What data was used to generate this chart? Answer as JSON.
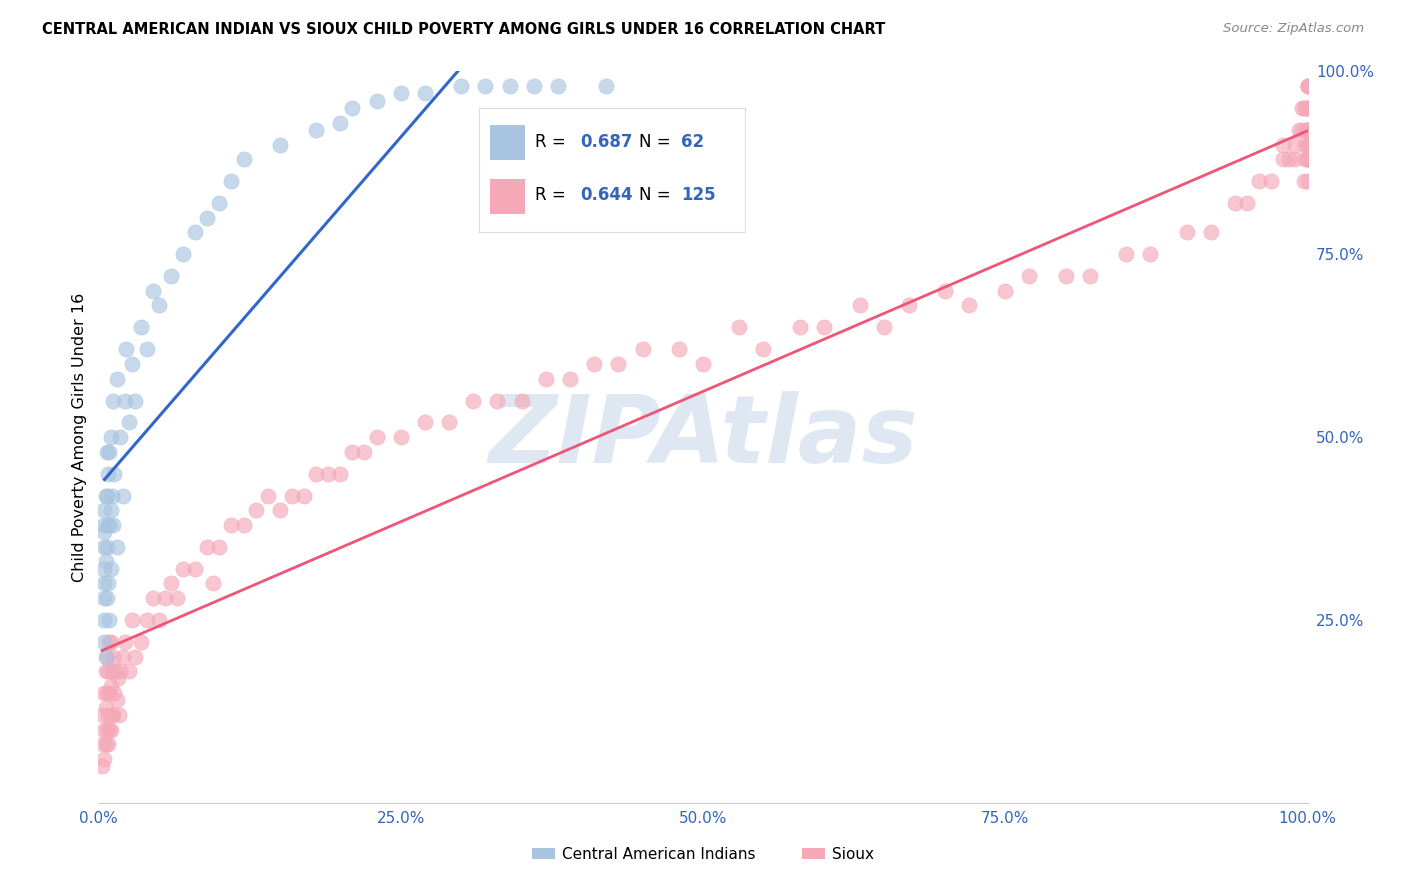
{
  "title": "CENTRAL AMERICAN INDIAN VS SIOUX CHILD POVERTY AMONG GIRLS UNDER 16 CORRELATION CHART",
  "source": "Source: ZipAtlas.com",
  "ylabel": "Child Poverty Among Girls Under 16",
  "blue_label": "Central American Indians",
  "pink_label": "Sioux",
  "blue_R": 0.687,
  "blue_N": 62,
  "pink_R": 0.644,
  "pink_N": 125,
  "blue_color": "#A8C4E0",
  "pink_color": "#F4A8B8",
  "blue_line_color": "#3366CC",
  "pink_line_color": "#EE5577",
  "watermark_color": "#C5D5EA",
  "background": "#FFFFFF",
  "blue_x": [
    0.005,
    0.005,
    0.005,
    0.005,
    0.005,
    0.005,
    0.005,
    0.005,
    0.005,
    0.006,
    0.006,
    0.006,
    0.007,
    0.007,
    0.007,
    0.007,
    0.008,
    0.008,
    0.008,
    0.009,
    0.009,
    0.009,
    0.01,
    0.01,
    0.01,
    0.011,
    0.012,
    0.012,
    0.013,
    0.015,
    0.015,
    0.018,
    0.02,
    0.022,
    0.023,
    0.025,
    0.028,
    0.03,
    0.035,
    0.04,
    0.045,
    0.05,
    0.06,
    0.07,
    0.08,
    0.09,
    0.1,
    0.11,
    0.12,
    0.15,
    0.18,
    0.2,
    0.21,
    0.23,
    0.25,
    0.27,
    0.3,
    0.32,
    0.34,
    0.36,
    0.38,
    0.42
  ],
  "blue_y": [
    0.22,
    0.25,
    0.28,
    0.3,
    0.32,
    0.35,
    0.37,
    0.38,
    0.4,
    0.2,
    0.33,
    0.42,
    0.28,
    0.35,
    0.42,
    0.48,
    0.3,
    0.38,
    0.45,
    0.25,
    0.38,
    0.48,
    0.32,
    0.4,
    0.5,
    0.42,
    0.38,
    0.55,
    0.45,
    0.35,
    0.58,
    0.5,
    0.42,
    0.55,
    0.62,
    0.52,
    0.6,
    0.55,
    0.65,
    0.62,
    0.7,
    0.68,
    0.72,
    0.75,
    0.78,
    0.8,
    0.82,
    0.85,
    0.88,
    0.9,
    0.92,
    0.93,
    0.95,
    0.96,
    0.97,
    0.97,
    0.98,
    0.98,
    0.98,
    0.98,
    0.98,
    0.98
  ],
  "pink_x": [
    0.003,
    0.004,
    0.004,
    0.005,
    0.005,
    0.005,
    0.006,
    0.006,
    0.006,
    0.007,
    0.007,
    0.007,
    0.008,
    0.008,
    0.008,
    0.009,
    0.009,
    0.009,
    0.01,
    0.01,
    0.01,
    0.011,
    0.011,
    0.012,
    0.012,
    0.013,
    0.014,
    0.015,
    0.016,
    0.017,
    0.018,
    0.02,
    0.022,
    0.025,
    0.028,
    0.03,
    0.035,
    0.04,
    0.045,
    0.05,
    0.055,
    0.06,
    0.065,
    0.07,
    0.08,
    0.09,
    0.095,
    0.1,
    0.11,
    0.12,
    0.13,
    0.14,
    0.15,
    0.16,
    0.17,
    0.18,
    0.19,
    0.2,
    0.21,
    0.22,
    0.23,
    0.25,
    0.27,
    0.29,
    0.31,
    0.33,
    0.35,
    0.37,
    0.39,
    0.41,
    0.43,
    0.45,
    0.48,
    0.5,
    0.53,
    0.55,
    0.58,
    0.6,
    0.63,
    0.65,
    0.67,
    0.7,
    0.72,
    0.75,
    0.77,
    0.8,
    0.82,
    0.85,
    0.87,
    0.9,
    0.92,
    0.94,
    0.95,
    0.96,
    0.97,
    0.98,
    0.98,
    0.985,
    0.99,
    0.99,
    0.993,
    0.995,
    0.995,
    0.997,
    0.997,
    0.998,
    0.998,
    0.999,
    0.999,
    1.0,
    1.0,
    1.0,
    1.0,
    1.0,
    1.0,
    1.0,
    1.0,
    1.0,
    1.0,
    1.0,
    1.0,
    1.0,
    1.0,
    1.0,
    1.0
  ],
  "pink_y": [
    0.05,
    0.08,
    0.12,
    0.06,
    0.1,
    0.15,
    0.08,
    0.13,
    0.18,
    0.1,
    0.15,
    0.2,
    0.08,
    0.12,
    0.18,
    0.1,
    0.15,
    0.22,
    0.1,
    0.16,
    0.22,
    0.12,
    0.18,
    0.12,
    0.2,
    0.15,
    0.18,
    0.14,
    0.17,
    0.12,
    0.18,
    0.2,
    0.22,
    0.18,
    0.25,
    0.2,
    0.22,
    0.25,
    0.28,
    0.25,
    0.28,
    0.3,
    0.28,
    0.32,
    0.32,
    0.35,
    0.3,
    0.35,
    0.38,
    0.38,
    0.4,
    0.42,
    0.4,
    0.42,
    0.42,
    0.45,
    0.45,
    0.45,
    0.48,
    0.48,
    0.5,
    0.5,
    0.52,
    0.52,
    0.55,
    0.55,
    0.55,
    0.58,
    0.58,
    0.6,
    0.6,
    0.62,
    0.62,
    0.6,
    0.65,
    0.62,
    0.65,
    0.65,
    0.68,
    0.65,
    0.68,
    0.7,
    0.68,
    0.7,
    0.72,
    0.72,
    0.72,
    0.75,
    0.75,
    0.78,
    0.78,
    0.82,
    0.82,
    0.85,
    0.85,
    0.88,
    0.9,
    0.88,
    0.9,
    0.88,
    0.92,
    0.92,
    0.95,
    0.95,
    0.85,
    0.88,
    0.9,
    0.92,
    0.95,
    0.88,
    0.9,
    0.92,
    0.95,
    0.98,
    0.85,
    0.9,
    0.88,
    0.92,
    0.98,
    0.88,
    0.9,
    0.92,
    0.95,
    0.98,
    0.88
  ]
}
